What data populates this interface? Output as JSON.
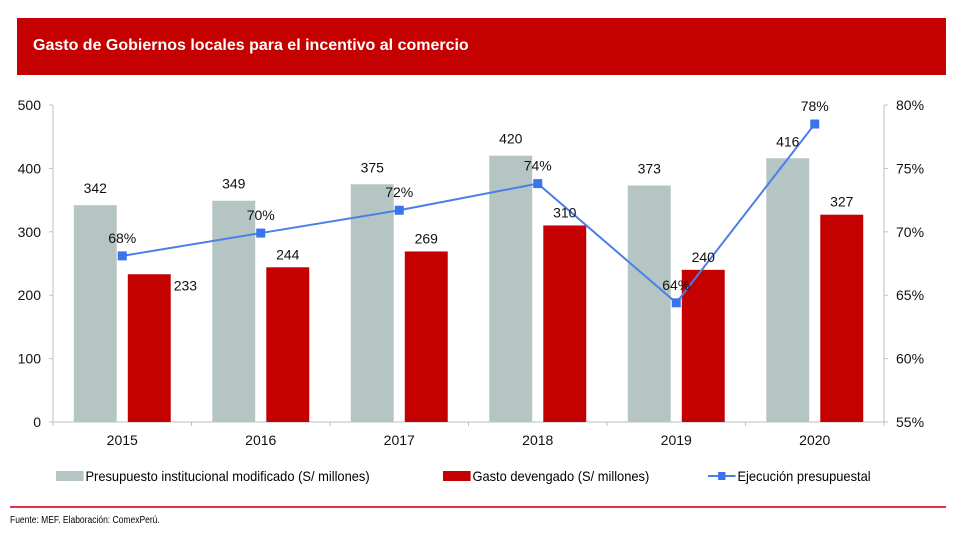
{
  "header": {
    "title": "Gasto de Gobiernos locales para el incentivo al comercio"
  },
  "colors": {
    "title_band": "#c40000",
    "presupuesto": "#b5c5c3",
    "gasto": "#c40000",
    "ejecucion": "#3a74ea",
    "axis": "#b5c5c3",
    "footer_rule": "#e0344b"
  },
  "chart_data": {
    "type": "bar",
    "title": "Gasto de Gobiernos locales para el incentivo al comercio",
    "xlabel": "",
    "ylabel": "",
    "categories": [
      "2015",
      "2016",
      "2017",
      "2018",
      "2019",
      "2020"
    ],
    "ylim": [
      0,
      500
    ],
    "y_ticks": [
      "0",
      "100",
      "200",
      "300",
      "400",
      "500"
    ],
    "y2lim": [
      55,
      80
    ],
    "y2_ticks": [
      "55%",
      "60%",
      "65%",
      "70%",
      "75%",
      "80%"
    ],
    "grid": false,
    "legend_position": "bottom",
    "series": [
      {
        "name": "Presupuesto institucional modificado (S/ millones)",
        "type": "bar",
        "axis": "left",
        "values": [
          342,
          349,
          375,
          420,
          373,
          416
        ],
        "labels": [
          "342",
          "349",
          "375",
          "420",
          "373",
          "416"
        ]
      },
      {
        "name": "Gasto devengado (S/ millones)",
        "type": "bar",
        "axis": "left",
        "values": [
          233,
          244,
          269,
          310,
          240,
          327
        ],
        "labels": [
          "233",
          "244",
          "269",
          "310",
          "240",
          "327"
        ]
      },
      {
        "name": "Ejecución presupuestal",
        "type": "line",
        "axis": "right",
        "values": [
          68.1,
          69.9,
          71.7,
          73.8,
          64.4,
          78.5
        ],
        "labels": [
          "68%",
          "70%",
          "72%",
          "74%",
          "64%",
          "78%"
        ]
      }
    ]
  },
  "legend": {
    "items": [
      {
        "label": "Presupuesto institucional modificado (S/ millones)"
      },
      {
        "label": "Gasto devengado (S/ millones)"
      },
      {
        "label": "Ejecución presupuestal"
      }
    ]
  },
  "footer": {
    "source": "Fuente: MEF. Elaboración: ComexPerú."
  }
}
